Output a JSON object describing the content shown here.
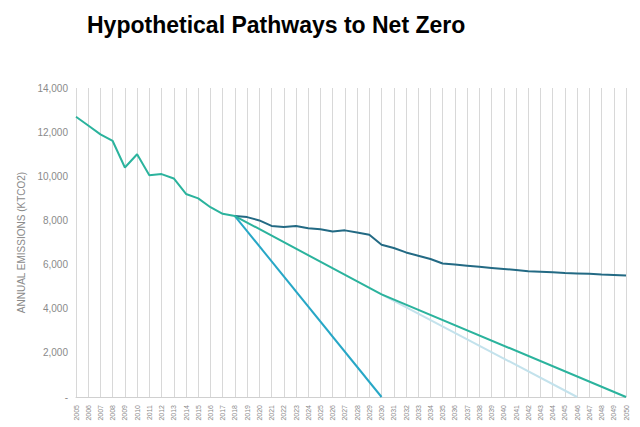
{
  "chart_data": {
    "type": "line",
    "title": "Hypothetical Pathways to Net Zero",
    "ylabel": "ANNUAL EMISSIONS (KTCO2)",
    "categories": [
      "2005",
      "2006",
      "2007",
      "2008",
      "2009",
      "2010",
      "2011",
      "2012",
      "2013",
      "2014",
      "2015",
      "2016",
      "2017",
      "2018",
      "2019",
      "2020",
      "2021",
      "2022",
      "2023",
      "2024",
      "2025",
      "2026",
      "2027",
      "2028",
      "2029",
      "2030",
      "2031",
      "2032",
      "2033",
      "2034",
      "2035",
      "2036",
      "2037",
      "2038",
      "2039",
      "2040",
      "2041",
      "2042",
      "2043",
      "2044",
      "2045",
      "2046",
      "2047",
      "2048",
      "2049",
      "2050"
    ],
    "series": [
      {
        "color": "#c3e2ec",
        "values": [
          null,
          null,
          null,
          null,
          null,
          null,
          null,
          null,
          null,
          null,
          null,
          null,
          null,
          null,
          null,
          null,
          null,
          null,
          null,
          null,
          null,
          null,
          null,
          null,
          null,
          4650,
          null,
          null,
          null,
          null,
          null,
          null,
          null,
          null,
          null,
          null,
          null,
          null,
          null,
          null,
          null,
          0,
          null,
          null,
          null,
          null
        ]
      },
      {
        "color": "#236a84",
        "values": [
          null,
          null,
          null,
          null,
          null,
          null,
          null,
          null,
          null,
          null,
          null,
          null,
          null,
          8200,
          8150,
          8000,
          7750,
          7700,
          7750,
          7650,
          7600,
          7500,
          7550,
          7450,
          7350,
          6900,
          6750,
          6550,
          6400,
          6250,
          6050,
          6000,
          5950,
          5900,
          5850,
          5800,
          5750,
          5700,
          5680,
          5650,
          5620,
          5600,
          5580,
          5550,
          5530,
          5500
        ]
      },
      {
        "color": "#27a7c6",
        "values": [
          null,
          null,
          null,
          null,
          null,
          null,
          null,
          null,
          null,
          null,
          null,
          null,
          null,
          8200,
          null,
          null,
          null,
          null,
          null,
          null,
          null,
          null,
          null,
          null,
          null,
          0,
          null,
          null,
          null,
          null,
          null,
          null,
          null,
          null,
          null,
          null,
          null,
          null,
          null,
          null,
          null,
          null,
          null,
          null,
          null,
          null
        ]
      },
      {
        "color": "#2bb39d",
        "values": [
          12700,
          12300,
          11900,
          11600,
          10400,
          11000,
          10050,
          10100,
          9900,
          9200,
          9000,
          8600,
          8300,
          8200,
          null,
          null,
          null,
          null,
          null,
          null,
          null,
          null,
          null,
          null,
          null,
          4650,
          null,
          null,
          null,
          null,
          null,
          null,
          null,
          null,
          null,
          null,
          null,
          null,
          null,
          null,
          null,
          null,
          null,
          null,
          null,
          0
        ]
      }
    ],
    "ylim": [
      0,
      14000
    ],
    "yticks": [
      {
        "value": 0,
        "label": "-"
      },
      {
        "value": 2000,
        "label": "2,000"
      },
      {
        "value": 4000,
        "label": "4,000"
      },
      {
        "value": 6000,
        "label": "6,000"
      },
      {
        "value": 8000,
        "label": "8,000"
      },
      {
        "value": 10000,
        "label": "10,000"
      },
      {
        "value": 12000,
        "label": "12,000"
      },
      {
        "value": 14000,
        "label": "14,000"
      }
    ],
    "grid": true
  }
}
